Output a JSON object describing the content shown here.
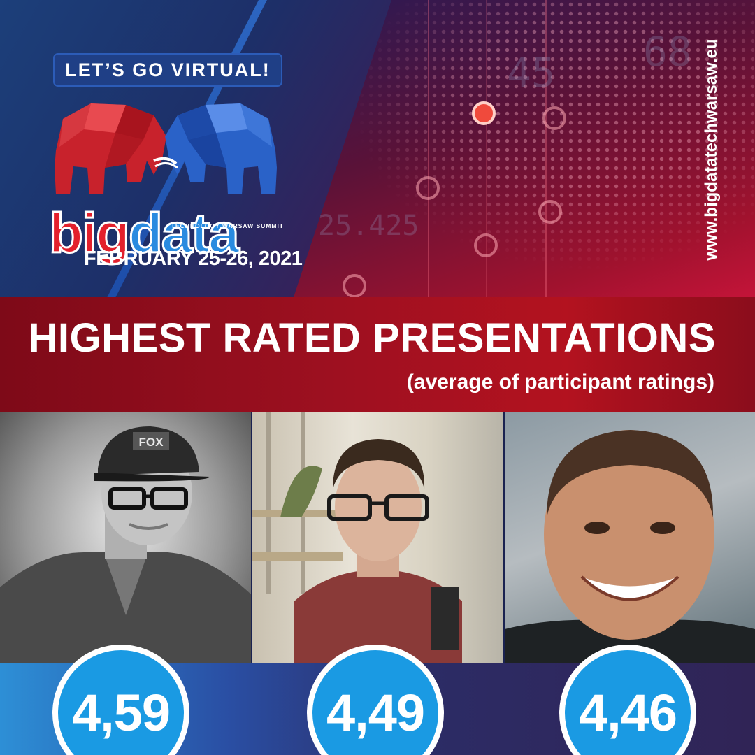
{
  "event": {
    "tagline": "LET’S GO VIRTUAL!",
    "logo_big": "big",
    "logo_data": "data",
    "logo_subtitle": "TECHNOLOGY WARSAW SUMMIT",
    "date": "FEBRUARY 25-26, 2021",
    "website": "www.bigdatatechwarsaw.eu"
  },
  "background_numbers": [
    "45",
    "68",
    "25.425"
  ],
  "banner": {
    "title": "HIGHEST RATED PRESENTATIONS",
    "subtitle": "(average of participant ratings)"
  },
  "ratings": [
    {
      "score": "4,59",
      "cap_text": "FOX"
    },
    {
      "score": "4,49"
    },
    {
      "score": "4,46"
    }
  ],
  "colors": {
    "banner_red": "#a0101f",
    "score_blue": "#1a9ae3",
    "logo_red": "#e3202c",
    "logo_blue": "#2a8be0"
  }
}
